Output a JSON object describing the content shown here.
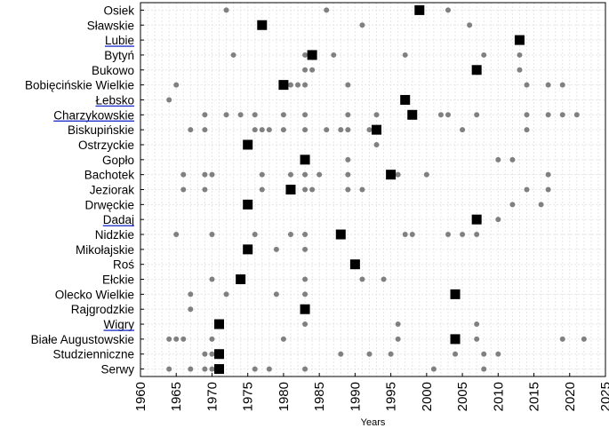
{
  "chart_data": {
    "type": "scatter",
    "xlabel": "Years",
    "xlim": [
      1960,
      2025
    ],
    "xticks": [
      1960,
      1965,
      1970,
      1975,
      1980,
      1985,
      1990,
      1995,
      2000,
      2005,
      2010,
      2015,
      2020,
      2025
    ],
    "grid": true,
    "categories": [
      "Osiek",
      "Sławskie",
      "Lubie",
      "Bytyń",
      "Bukowo",
      "Bobięcińskie Wielkie",
      "Łebsko",
      "Charzykowskie",
      "Biskupińskie",
      "Ostrzyckie",
      "Gopło",
      "Bachotek",
      "Jeziorak",
      "Drwęckie",
      "Dadaj",
      "Nidzkie",
      "Mikołajskie",
      "Roś",
      "Ełckie",
      "Olecko Wielkie",
      "Rajgrodzkie",
      "Wigry",
      "Białe Augustowskie",
      "Studzienniczne",
      "Serwy"
    ],
    "underlined_categories": [
      "Lubie",
      "Łebsko",
      "Charzykowskie",
      "Dadaj",
      "Wigry"
    ],
    "series": [
      {
        "marker": "circle",
        "color": "#808080",
        "points": {
          "Osiek": [
            1972,
            1986,
            2003
          ],
          "Sławskie": [
            1991,
            2006
          ],
          "Lubie": [],
          "Bytyń": [
            1973,
            1983,
            1987,
            1997,
            2008,
            2013
          ],
          "Bukowo": [
            1983,
            1984,
            2013
          ],
          "Bobięcińskie Wielkie": [
            1965,
            1981,
            1982,
            1983,
            1989,
            2014,
            2017,
            2019
          ],
          "Łebsko": [
            1964
          ],
          "Charzykowskie": [
            1969,
            1972,
            1974,
            1976,
            1980,
            1983,
            1989,
            1993,
            2002,
            2003,
            2007,
            2014,
            2017,
            2019,
            2021
          ],
          "Biskupińskie": [
            1967,
            1969,
            1976,
            1977,
            1978,
            1980,
            1983,
            1986,
            1988,
            1989,
            1992,
            2005,
            2014
          ],
          "Ostrzyckie": [
            1993
          ],
          "Gopło": [
            1989,
            2010,
            2012
          ],
          "Bachotek": [
            1966,
            1969,
            1970,
            1977,
            1981,
            1983,
            1985,
            1989,
            1996,
            2000,
            2017
          ],
          "Jeziorak": [
            1966,
            1969,
            1977,
            1983,
            1984,
            1989,
            1991,
            2014,
            2017
          ],
          "Drwęckie": [
            2012,
            2016
          ],
          "Dadaj": [
            2010
          ],
          "Nidzkie": [
            1965,
            1970,
            1976,
            1981,
            1983,
            1997,
            1998,
            2003,
            2005,
            2007
          ],
          "Mikołajskie": [
            1979,
            1983
          ],
          "Roś": [],
          "Ełckie": [
            1970,
            1983,
            1991,
            1994
          ],
          "Olecko Wielkie": [
            1967,
            1972,
            1979,
            1983
          ],
          "Rajgrodzkie": [
            1967
          ],
          "Wigry": [
            1983,
            1996,
            2007
          ],
          "Białe Augustowskie": [
            1964,
            1965,
            1966,
            1970,
            1980,
            1996,
            2007,
            2019,
            2022
          ],
          "Studzienniczne": [
            1969,
            1970,
            1988,
            1992,
            1995,
            2004,
            2008,
            2010
          ],
          "Serwy": [
            1964,
            1967,
            1969,
            1970,
            1976,
            1978,
            1983,
            2001,
            2008
          ]
        }
      },
      {
        "marker": "square",
        "color": "#000000",
        "points": {
          "Osiek": [
            1999
          ],
          "Sławskie": [
            1977
          ],
          "Lubie": [
            2013
          ],
          "Bytyń": [
            1984
          ],
          "Bukowo": [
            2007
          ],
          "Bobięcińskie Wielkie": [
            1980
          ],
          "Łebsko": [
            1997
          ],
          "Charzykowskie": [
            1998
          ],
          "Biskupińskie": [
            1993
          ],
          "Ostrzyckie": [
            1975
          ],
          "Gopło": [
            1983
          ],
          "Bachotek": [
            1995
          ],
          "Jeziorak": [
            1981
          ],
          "Drwęckie": [
            1975
          ],
          "Dadaj": [
            2007
          ],
          "Nidzkie": [
            1988
          ],
          "Mikołajskie": [
            1975
          ],
          "Roś": [
            1990
          ],
          "Ełckie": [
            1974
          ],
          "Olecko Wielkie": [
            2004
          ],
          "Rajgrodzkie": [
            1983
          ],
          "Wigry": [
            1971
          ],
          "Białe Augustowskie": [
            2004
          ],
          "Studzienniczne": [
            1971
          ],
          "Serwy": [
            1971
          ]
        }
      }
    ]
  }
}
